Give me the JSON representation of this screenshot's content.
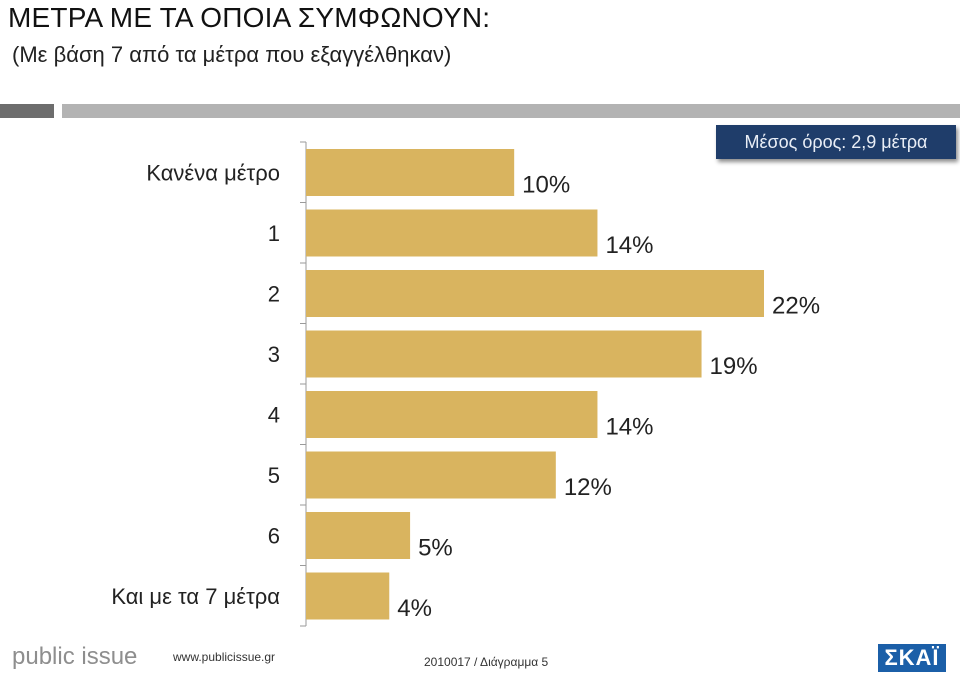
{
  "header": {
    "title": "ΜΕΤΡΑ ΜΕ ΤΑ ΟΠΟΙΑ ΣΥΜΦΩΝΟΥΝ:",
    "subtitle": "(Με βάση 7 από τα μέτρα που εξαγγέλθηκαν)"
  },
  "average_label": "Μέσος όρος: 2,9 μέτρα",
  "chart_data": {
    "type": "bar",
    "orientation": "horizontal",
    "categories": [
      "Κανένα μέτρο",
      "1",
      "2",
      "3",
      "4",
      "5",
      "6",
      "Και με τα 7 μέτρα"
    ],
    "values": [
      10,
      14,
      22,
      19,
      14,
      12,
      5,
      4
    ],
    "value_labels": [
      "10%",
      "14%",
      "22%",
      "19%",
      "14%",
      "12%",
      "5%",
      "4%"
    ],
    "bar_color": "#d9b45f",
    "xlim": [
      0,
      22
    ]
  },
  "footer": {
    "logo_text": "public issue",
    "url": "www.publicissue.gr",
    "code": "2010017 / Διάγραμμα 5",
    "brand": "ΣΚΑΪ"
  }
}
